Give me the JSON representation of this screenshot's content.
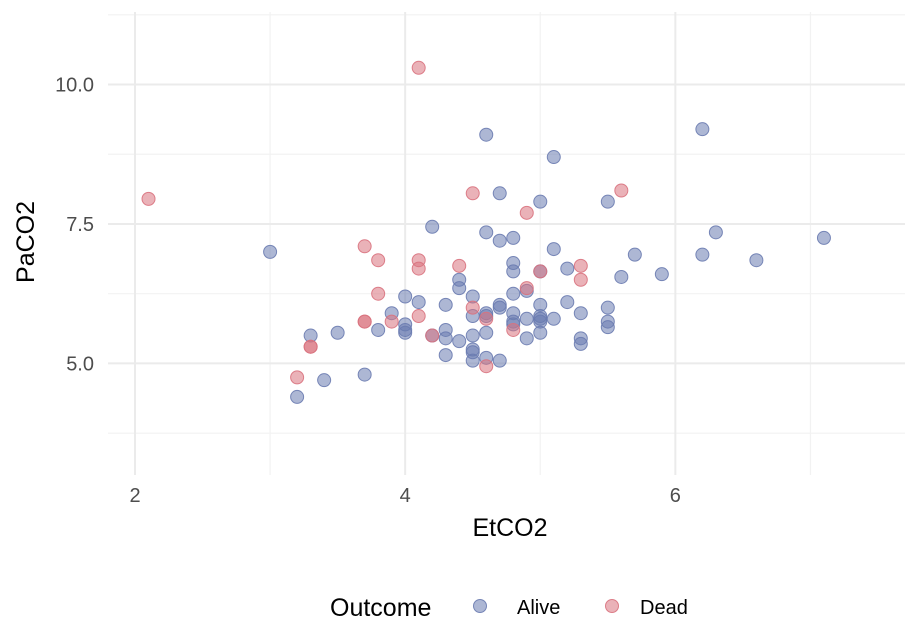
{
  "chart_data": {
    "type": "scatter",
    "xlabel": "EtCO2",
    "ylabel": "PaCO2",
    "xlim": [
      1.8,
      7.7
    ],
    "ylim": [
      3.0,
      11.3
    ],
    "x_ticks": [
      2,
      4,
      6
    ],
    "x_tick_labels": [
      "2",
      "4",
      "6"
    ],
    "y_ticks": [
      5.0,
      7.5,
      10.0
    ],
    "y_tick_labels": [
      "5.0",
      "7.5",
      "10.0"
    ],
    "grid": true,
    "legend": {
      "title": "Outcome",
      "placement": "bottom"
    },
    "series": [
      {
        "name": "Alive",
        "color": "#6a7bb0",
        "points": [
          [
            3.0,
            7.0
          ],
          [
            3.2,
            4.4
          ],
          [
            3.3,
            5.5
          ],
          [
            3.4,
            4.7
          ],
          [
            3.5,
            5.55
          ],
          [
            3.7,
            4.8
          ],
          [
            3.8,
            5.6
          ],
          [
            3.9,
            5.9
          ],
          [
            4.0,
            6.2
          ],
          [
            4.0,
            5.7
          ],
          [
            4.0,
            5.6
          ],
          [
            4.0,
            5.55
          ],
          [
            4.1,
            6.1
          ],
          [
            4.2,
            7.45
          ],
          [
            4.2,
            5.5
          ],
          [
            4.3,
            6.05
          ],
          [
            4.3,
            5.6
          ],
          [
            4.3,
            5.45
          ],
          [
            4.3,
            5.15
          ],
          [
            4.4,
            6.5
          ],
          [
            4.4,
            6.35
          ],
          [
            4.4,
            5.4
          ],
          [
            4.5,
            6.2
          ],
          [
            4.5,
            5.85
          ],
          [
            4.5,
            5.5
          ],
          [
            4.5,
            5.25
          ],
          [
            4.5,
            5.2
          ],
          [
            4.5,
            5.05
          ],
          [
            4.6,
            9.1
          ],
          [
            4.6,
            7.35
          ],
          [
            4.6,
            5.9
          ],
          [
            4.6,
            5.85
          ],
          [
            4.6,
            5.55
          ],
          [
            4.6,
            5.1
          ],
          [
            4.7,
            8.05
          ],
          [
            4.7,
            7.2
          ],
          [
            4.7,
            6.05
          ],
          [
            4.7,
            6.0
          ],
          [
            4.7,
            5.05
          ],
          [
            4.8,
            7.25
          ],
          [
            4.8,
            6.8
          ],
          [
            4.8,
            6.65
          ],
          [
            4.8,
            6.25
          ],
          [
            4.8,
            5.9
          ],
          [
            4.8,
            5.75
          ],
          [
            4.8,
            5.7
          ],
          [
            4.9,
            6.3
          ],
          [
            4.9,
            5.8
          ],
          [
            4.9,
            5.45
          ],
          [
            5.0,
            7.9
          ],
          [
            5.0,
            6.65
          ],
          [
            5.0,
            6.05
          ],
          [
            5.0,
            5.85
          ],
          [
            5.0,
            5.8
          ],
          [
            5.0,
            5.75
          ],
          [
            5.0,
            5.55
          ],
          [
            5.1,
            8.7
          ],
          [
            5.1,
            7.05
          ],
          [
            5.1,
            5.8
          ],
          [
            5.2,
            6.7
          ],
          [
            5.2,
            6.1
          ],
          [
            5.3,
            5.9
          ],
          [
            5.3,
            5.45
          ],
          [
            5.3,
            5.35
          ],
          [
            5.5,
            7.9
          ],
          [
            5.5,
            6.0
          ],
          [
            5.5,
            5.75
          ],
          [
            5.5,
            5.65
          ],
          [
            5.6,
            6.55
          ],
          [
            5.7,
            6.95
          ],
          [
            5.9,
            6.6
          ],
          [
            6.2,
            9.2
          ],
          [
            6.2,
            6.95
          ],
          [
            6.3,
            7.35
          ],
          [
            6.6,
            6.85
          ],
          [
            7.1,
            7.25
          ]
        ]
      },
      {
        "name": "Dead",
        "color": "#d9727e",
        "points": [
          [
            2.1,
            7.95
          ],
          [
            3.2,
            4.75
          ],
          [
            3.3,
            5.3
          ],
          [
            3.3,
            5.3
          ],
          [
            3.7,
            7.1
          ],
          [
            3.7,
            5.75
          ],
          [
            3.7,
            5.75
          ],
          [
            3.8,
            6.85
          ],
          [
            3.8,
            6.25
          ],
          [
            3.9,
            5.75
          ],
          [
            4.1,
            10.3
          ],
          [
            4.1,
            6.85
          ],
          [
            4.1,
            6.7
          ],
          [
            4.1,
            5.85
          ],
          [
            4.2,
            5.5
          ],
          [
            4.4,
            6.75
          ],
          [
            4.5,
            8.05
          ],
          [
            4.5,
            6.0
          ],
          [
            4.6,
            5.8
          ],
          [
            4.6,
            4.95
          ],
          [
            4.8,
            5.6
          ],
          [
            4.9,
            7.7
          ],
          [
            4.9,
            6.35
          ],
          [
            5.0,
            6.65
          ],
          [
            5.3,
            6.75
          ],
          [
            5.3,
            6.5
          ],
          [
            5.6,
            8.1
          ]
        ]
      }
    ]
  }
}
